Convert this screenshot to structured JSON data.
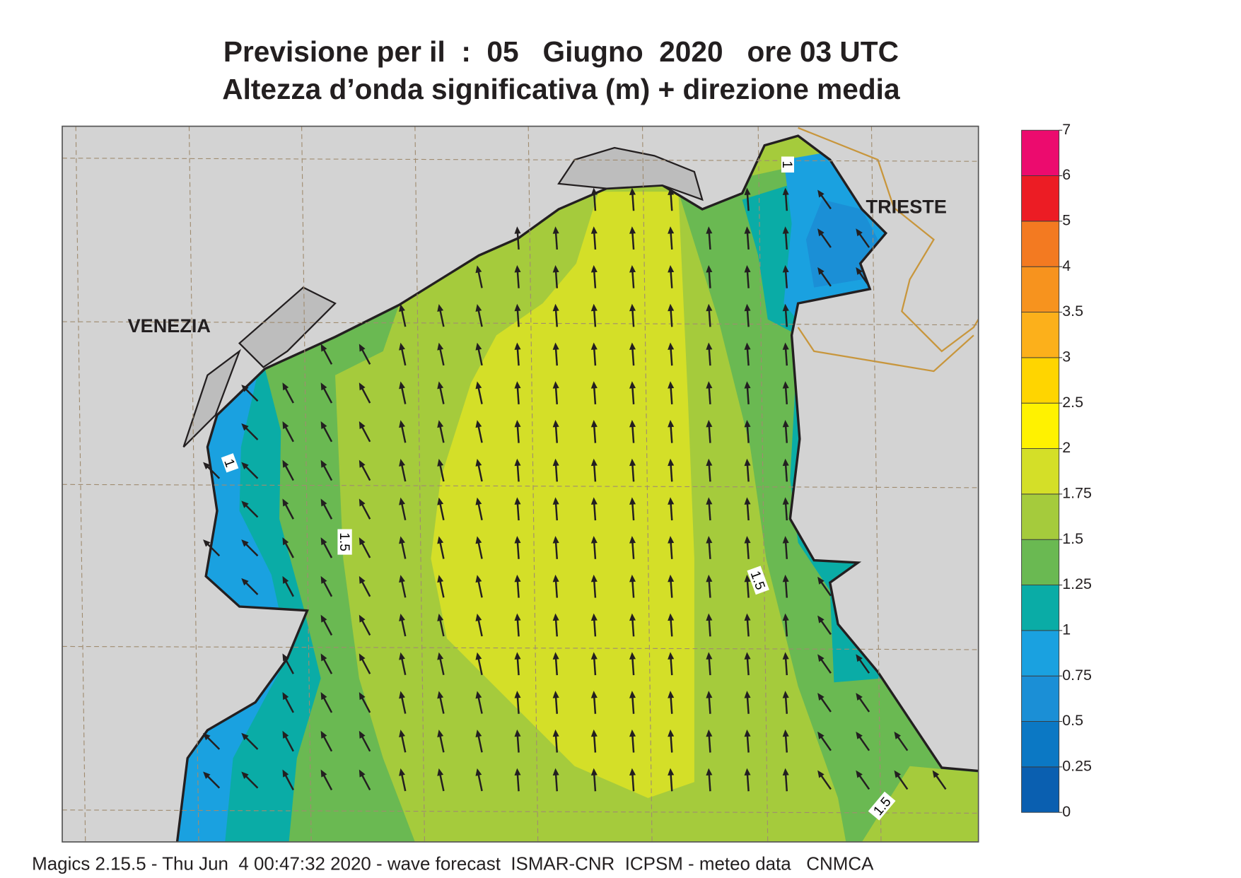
{
  "header": {
    "title": "Previsione per il  :  05   Giugno  2020   ore 03 UTC",
    "subtitle": "Altezza d’onda significativa (m) + direzione media"
  },
  "map": {
    "place_labels": [
      "VENEZIA",
      "TRIESTE"
    ],
    "contour_labels": [
      "1",
      "1",
      "1.5",
      "1.5",
      "1.5"
    ]
  },
  "legend": {
    "ticks": [
      0,
      0.25,
      0.5,
      0.75,
      1,
      1.25,
      1.5,
      1.75,
      2,
      2.5,
      3,
      3.5,
      4,
      5,
      6,
      7
    ],
    "colors": [
      "#0a5fb0",
      "#0b78c4",
      "#1b8fd6",
      "#1aa1e0",
      "#0aaca6",
      "#6ab952",
      "#a5cb3c",
      "#d4df28",
      "#fff200",
      "#ffd500",
      "#fcb01b",
      "#f7931e",
      "#f37a21",
      "#ec1c24",
      "#ec0b6e"
    ]
  },
  "footer": "Magics 2.15.5 - Thu Jun  4 00:47:32 2020 - wave forecast  ISMAR-CNR  ICPSM - meteo data   CNMCA"
}
